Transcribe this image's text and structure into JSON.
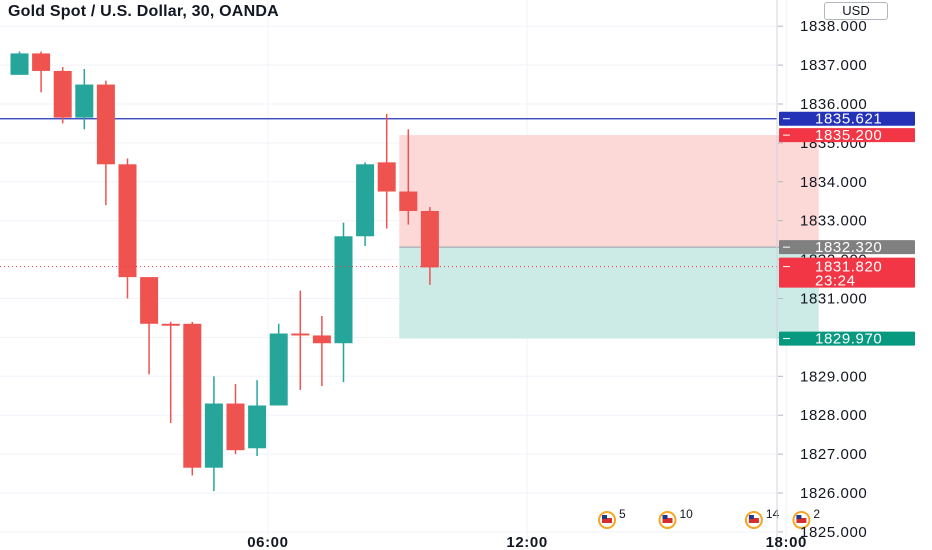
{
  "header": {
    "title": "Gold Spot / U.S. Dollar, 30, OANDA",
    "currency": "USD"
  },
  "chart_data": {
    "type": "candlestick",
    "symbol": "Gold Spot / U.S. Dollar",
    "interval": "30",
    "source": "OANDA",
    "ylim": [
      1824.9,
      1839.0
    ],
    "y_ticks": [
      {
        "value": 1838.0,
        "label": "1838.000"
      },
      {
        "value": 1837.0,
        "label": "1837.000"
      },
      {
        "value": 1836.0,
        "label": "1836.000"
      },
      {
        "value": 1835.0,
        "label": "1835.000"
      },
      {
        "value": 1834.0,
        "label": "1834.000"
      },
      {
        "value": 1833.0,
        "label": "1833.000"
      },
      {
        "value": 1832.0,
        "label": "1832.000"
      },
      {
        "value": 1831.0,
        "label": "1831.000"
      },
      {
        "value": 1830.0,
        "label": "1830.000"
      },
      {
        "value": 1829.0,
        "label": "1829.000"
      },
      {
        "value": 1828.0,
        "label": "1828.000"
      },
      {
        "value": 1827.0,
        "label": "1827.000"
      },
      {
        "value": 1826.0,
        "label": "1826.000"
      },
      {
        "value": 1825.0,
        "label": "1825.000"
      }
    ],
    "x_ticks": [
      {
        "bar": 11.5,
        "label": "06:00"
      },
      {
        "bar": 23.5,
        "label": "12:00"
      },
      {
        "bar": 35.5,
        "label": "18:00"
      }
    ],
    "candles": [
      {
        "o": 1836.75,
        "h": 1837.35,
        "l": 1836.75,
        "c": 1837.3
      },
      {
        "o": 1837.3,
        "h": 1837.35,
        "l": 1836.3,
        "c": 1836.85
      },
      {
        "o": 1836.85,
        "h": 1836.95,
        "l": 1835.5,
        "c": 1835.65
      },
      {
        "o": 1835.65,
        "h": 1836.9,
        "l": 1835.35,
        "c": 1836.5
      },
      {
        "o": 1836.5,
        "h": 1836.6,
        "l": 1833.4,
        "c": 1834.45
      },
      {
        "o": 1834.45,
        "h": 1834.6,
        "l": 1831.0,
        "c": 1831.55
      },
      {
        "o": 1831.55,
        "h": 1831.55,
        "l": 1829.05,
        "c": 1830.35
      },
      {
        "o": 1830.35,
        "h": 1830.4,
        "l": 1827.8,
        "c": 1830.3
      },
      {
        "o": 1830.35,
        "h": 1830.4,
        "l": 1826.45,
        "c": 1826.65
      },
      {
        "o": 1826.65,
        "h": 1829.0,
        "l": 1826.05,
        "c": 1828.3
      },
      {
        "o": 1828.3,
        "h": 1828.8,
        "l": 1827.0,
        "c": 1827.1
      },
      {
        "o": 1827.15,
        "h": 1828.9,
        "l": 1826.95,
        "c": 1828.25
      },
      {
        "o": 1828.25,
        "h": 1830.35,
        "l": 1828.25,
        "c": 1830.1
      },
      {
        "o": 1830.1,
        "h": 1831.2,
        "l": 1828.65,
        "c": 1830.05
      },
      {
        "o": 1830.05,
        "h": 1830.55,
        "l": 1828.75,
        "c": 1829.85
      },
      {
        "o": 1829.85,
        "h": 1832.95,
        "l": 1828.85,
        "c": 1832.6
      },
      {
        "o": 1832.6,
        "h": 1834.5,
        "l": 1832.35,
        "c": 1834.45
      },
      {
        "o": 1834.5,
        "h": 1835.75,
        "l": 1832.8,
        "c": 1833.75
      },
      {
        "o": 1833.75,
        "h": 1835.35,
        "l": 1832.9,
        "c": 1833.25
      },
      {
        "o": 1833.25,
        "h": 1833.35,
        "l": 1831.35,
        "c": 1831.8
      }
    ],
    "colors": {
      "up": "#26a69a",
      "down": "#ef5350",
      "price_line": "#2432b8",
      "stop_zone": "#fcd8d6",
      "target_zone": "#cceae6",
      "entry_tag": "#808080",
      "grid": "#f0f3fa"
    },
    "horizontal_line": {
      "value": 1835.621,
      "label": "1835.621"
    },
    "position": {
      "stop": 1835.2,
      "entry": 1832.32,
      "target": 1829.97,
      "start_bar": 18,
      "end_bar": 37
    },
    "price_tags": [
      {
        "value": 1835.621,
        "label": "1835.621",
        "color": "#2432b8"
      },
      {
        "value": 1835.2,
        "label": "1835.200",
        "color": "#f23645"
      },
      {
        "value": 1832.32,
        "label": "1832.320",
        "color": "#808080"
      },
      {
        "value": 1829.97,
        "label": "1829.970",
        "color": "#089981"
      }
    ],
    "current_price": {
      "value": 1831.82,
      "label": "1831.820",
      "countdown": "23:24",
      "color": "#f23645"
    },
    "events": [
      {
        "bar": 27.2,
        "count": "5"
      },
      {
        "bar": 30.0,
        "count": "10"
      },
      {
        "bar": 34.0,
        "count": "14"
      },
      {
        "bar": 36.2,
        "count": "2"
      }
    ]
  }
}
